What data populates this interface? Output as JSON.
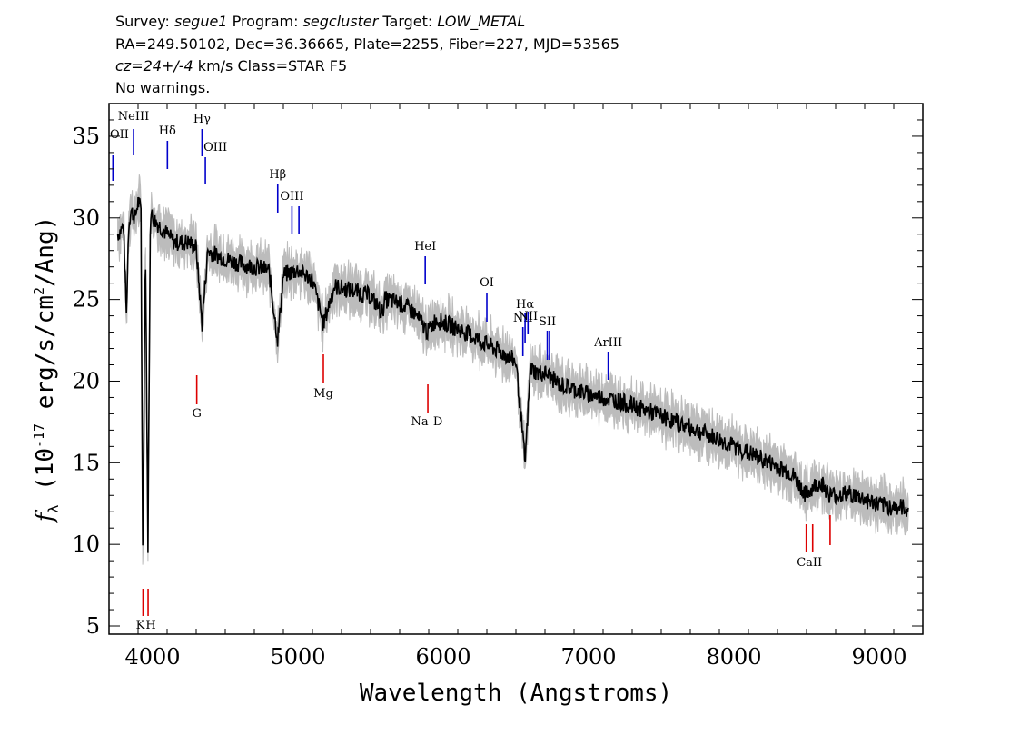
{
  "header": {
    "survey_label": "Survey:",
    "survey": "segue1",
    "program_label": "Program:",
    "program": "segcluster",
    "target_label": "Target:",
    "target": "LOW_METAL",
    "line2": "RA=249.50102, Dec=36.36665, Plate=2255, Fiber=227, MJD=53565",
    "cz": "cz=24+/-4",
    "cz_rest": " km/s Class=STAR F5",
    "warnings": "No warnings."
  },
  "chart_data": {
    "type": "line",
    "xlabel": "Wavelength (Angstroms)",
    "ylabel": "f_λ (10^-17 erg/s/cm^2/Ang)",
    "xlim": [
      3700,
      9300
    ],
    "ylim": [
      4.5,
      37
    ],
    "xticks": [
      4000,
      5000,
      6000,
      7000,
      8000,
      9000
    ],
    "yticks": [
      5,
      10,
      15,
      20,
      25,
      30,
      35
    ],
    "colors": {
      "flux": "#000000",
      "error_band": "#bcbcbc",
      "emission": "#0000cc",
      "absorption": "#dd0000"
    },
    "series": [
      {
        "x": [
          3760,
          3800,
          3820,
          3835,
          3850,
          3880,
          3900,
          3920,
          3933,
          3950,
          3968,
          3985,
          4000,
          4050,
          4100,
          4150,
          4200,
          4250,
          4300,
          4340,
          4380,
          4420,
          4500,
          4600,
          4700,
          4800,
          4861,
          4900,
          5000,
          5100,
          5175,
          5250,
          5400,
          5500,
          5580,
          5600,
          5700,
          5800,
          5893,
          5950,
          6050,
          6150,
          6250,
          6350,
          6450,
          6500,
          6563,
          6600,
          6650,
          6700,
          6800,
          7000,
          7200,
          7400,
          7600,
          7800,
          8000,
          8200,
          8400,
          8498,
          8542,
          8600,
          8662,
          8800,
          9000,
          9100,
          9200
        ],
        "y": [
          29.0,
          29.5,
          24,
          29.5,
          30.5,
          30,
          31,
          30.5,
          8,
          29,
          10,
          30.5,
          30,
          29.5,
          29,
          28.5,
          28.5,
          28.5,
          28.2,
          23.5,
          28,
          27.8,
          27.5,
          27.2,
          27,
          26.8,
          22.5,
          26.5,
          26.8,
          26.2,
          23.5,
          25.8,
          25.5,
          25.2,
          24.2,
          25,
          24.8,
          24.2,
          23,
          23.8,
          23.4,
          23,
          22.5,
          22,
          21.5,
          21.2,
          15,
          20.8,
          20.5,
          20.5,
          19.8,
          19.2,
          18.8,
          18.2,
          17.5,
          16.8,
          16,
          15.2,
          14.3,
          13,
          13.5,
          13.8,
          13,
          13.1,
          12.4,
          12.3,
          12.2
        ]
      }
    ],
    "emission_lines": [
      {
        "label": "OII",
        "x": 3727
      },
      {
        "label": "NeIII",
        "x": 3869
      },
      {
        "label": "Hδ",
        "x": 4102
      },
      {
        "label": "Hγ",
        "x": 4340
      },
      {
        "label": "OIII",
        "x": 4363
      },
      {
        "label": "Hβ",
        "x": 4861
      },
      {
        "label": "OIII",
        "x": 4959
      },
      {
        "label": "OIII",
        "x": 5007
      },
      {
        "label": "HeI",
        "x": 5876
      },
      {
        "label": "OI",
        "x": 6300
      },
      {
        "label": "NII",
        "x": 6548
      },
      {
        "label": "Hα",
        "x": 6563
      },
      {
        "label": "NII",
        "x": 6583
      },
      {
        "label": "SII",
        "x": 6716
      },
      {
        "label": "SII",
        "x": 6731
      },
      {
        "label": "ArIII",
        "x": 7135
      }
    ],
    "absorption_lines": [
      {
        "label": "K",
        "x": 3934
      },
      {
        "label": "H",
        "x": 3969
      },
      {
        "label": "G",
        "x": 4304
      },
      {
        "label": "Mg",
        "x": 5175
      },
      {
        "label": "Na",
        "x": 5894
      },
      {
        "label": "D",
        "x": 5894
      },
      {
        "label": "CaII",
        "x": 8498
      },
      {
        "label": "CaII",
        "x": 8542
      },
      {
        "label": "CaII",
        "x": 8662
      }
    ]
  }
}
